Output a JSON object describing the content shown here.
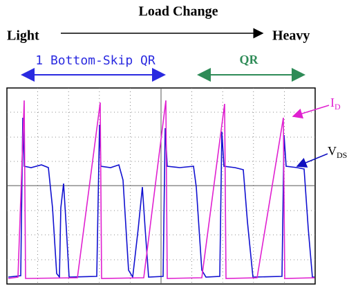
{
  "header": {
    "title": "Load Change",
    "left": "Light",
    "right": "Heavy"
  },
  "modes": [
    {
      "label": "1 Bottom-Skip QR"
    },
    {
      "label": "QR"
    }
  ],
  "signals": [
    {
      "symbol": "I",
      "subscript": "D"
    },
    {
      "symbol": "V",
      "subscript": "DS"
    }
  ]
}
